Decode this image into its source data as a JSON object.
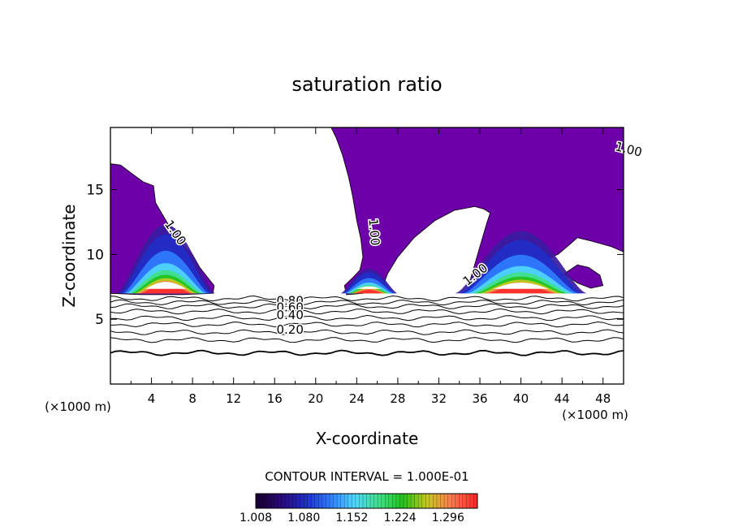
{
  "chart_data": {
    "type": "contour",
    "title": "saturation ratio",
    "xlabel": "X-coordinate",
    "ylabel": "Z-coordinate",
    "x_unit": "(×1000 m)",
    "x_unit_right": "(×1000 m)",
    "xlim": [
      0,
      50
    ],
    "ylim": [
      0,
      19.8
    ],
    "x_ticks": [
      4,
      8,
      12,
      16,
      20,
      24,
      28,
      32,
      36,
      40,
      44,
      48
    ],
    "y_ticks": [
      5,
      10,
      15
    ],
    "contour_interval_text": "CONTOUR INTERVAL =  1.000E-01",
    "colorbar": {
      "ticks": [
        "1.008",
        "1.080",
        "1.152",
        "1.224",
        "1.296"
      ],
      "range": [
        1.008,
        1.34
      ],
      "colors": [
        "#1a0033",
        "#2a0a7a",
        "#1f2fc8",
        "#2f7cff",
        "#4fd7ff",
        "#3fe08a",
        "#22c21a",
        "#c8c81e",
        "#ff7a4f",
        "#ff2a2a"
      ]
    },
    "contour_labels": [
      {
        "text": "1.00",
        "x": 50.4,
        "y": 17.8,
        "rotate": 14
      },
      {
        "text": "1.00",
        "x": 6.0,
        "y": 11.5,
        "rotate": 55
      },
      {
        "text": "1.00",
        "x": 25.3,
        "y": 11.7,
        "rotate": 85
      },
      {
        "text": "1.00",
        "x": 35.8,
        "y": 8.2,
        "rotate": -38
      },
      {
        "text": "0.80",
        "x": 17.5,
        "y": 6.1,
        "rotate": 0
      },
      {
        "text": "0.60",
        "x": 17.5,
        "y": 5.6,
        "rotate": 0
      },
      {
        "text": "0.40",
        "x": 17.5,
        "y": 5.0,
        "rotate": 0
      },
      {
        "text": "0.20",
        "x": 17.5,
        "y": 3.9,
        "rotate": 0
      }
    ],
    "contour_levels": [
      {
        "level": 0.2,
        "base": 2.4
      },
      {
        "level": 0.3,
        "base": 3.4
      },
      {
        "level": 0.4,
        "base": 4.0
      },
      {
        "level": 0.5,
        "base": 4.6
      },
      {
        "level": 0.6,
        "base": 5.1
      },
      {
        "level": 0.7,
        "base": 5.6
      },
      {
        "level": 0.8,
        "base": 6.0
      },
      {
        "level": 0.85,
        "base": 6.3
      },
      {
        "level": 0.9,
        "base": 6.6
      }
    ],
    "regions": [
      {
        "name": "anvil-left",
        "color": "#6d00a8",
        "points": [
          [
            0,
            17.0
          ],
          [
            1.0,
            16.9
          ],
          [
            2.0,
            16.3
          ],
          [
            3.2,
            15.6
          ],
          [
            4.2,
            15.3
          ],
          [
            4.4,
            14.0
          ],
          [
            5.5,
            12.5
          ],
          [
            6.3,
            11.4
          ],
          [
            7.2,
            10.6
          ],
          [
            8.0,
            10.0
          ],
          [
            8.7,
            9.0
          ],
          [
            9.5,
            8.2
          ],
          [
            10.1,
            7.6
          ],
          [
            10.0,
            7.0
          ],
          [
            7.0,
            6.9
          ],
          [
            3.0,
            6.9
          ],
          [
            0,
            7.0
          ]
        ]
      },
      {
        "name": "anvil-center",
        "color": "#6d00a8",
        "points": [
          [
            21.5,
            19.8
          ],
          [
            50,
            19.8
          ],
          [
            50,
            10.2
          ],
          [
            48.8,
            10.6
          ],
          [
            47.0,
            11.0
          ],
          [
            45.5,
            11.3
          ],
          [
            44.8,
            10.8
          ],
          [
            43.6,
            10.0
          ],
          [
            42.0,
            9.5
          ],
          [
            40.5,
            9.2
          ],
          [
            38.0,
            8.4
          ],
          [
            36.4,
            8.4
          ],
          [
            35.2,
            8.2
          ],
          [
            34.9,
            7.6
          ],
          [
            36.0,
            10.6
          ],
          [
            36.7,
            12.5
          ],
          [
            37.0,
            13.2
          ],
          [
            36.4,
            13.5
          ],
          [
            35.5,
            13.7
          ],
          [
            33.5,
            13.4
          ],
          [
            31.6,
            12.6
          ],
          [
            29.6,
            11.3
          ],
          [
            28.0,
            9.8
          ],
          [
            27.0,
            8.5
          ],
          [
            26.4,
            7.2
          ],
          [
            25.5,
            7.1
          ],
          [
            24.6,
            7.0
          ],
          [
            23.0,
            6.9
          ],
          [
            22.8,
            7.6
          ],
          [
            23.6,
            8.2
          ],
          [
            24.3,
            8.8
          ],
          [
            24.6,
            9.8
          ],
          [
            24.4,
            11.2
          ],
          [
            24.0,
            12.6
          ],
          [
            23.6,
            14.5
          ],
          [
            23.2,
            16.0
          ],
          [
            22.6,
            17.7
          ],
          [
            22.0,
            19.0
          ]
        ]
      },
      {
        "name": "outflow-right",
        "color": "#6d00a8",
        "points": [
          [
            44.2,
            8.5
          ],
          [
            45.5,
            7.8
          ],
          [
            46.8,
            7.4
          ],
          [
            48.0,
            7.6
          ],
          [
            47.7,
            8.4
          ],
          [
            46.6,
            9.0
          ],
          [
            45.5,
            9.2
          ]
        ]
      }
    ],
    "cores": [
      {
        "name": "core-left",
        "cx": 5.4,
        "base": 7.0,
        "halfwidth": 4.8,
        "height": 5.3
      },
      {
        "name": "core-right",
        "cx": 40.0,
        "base": 7.0,
        "halfwidth": 6.4,
        "height": 4.8
      },
      {
        "name": "core-center",
        "cx": 25.2,
        "base": 7.0,
        "halfwidth": 2.8,
        "height": 1.9
      }
    ]
  }
}
